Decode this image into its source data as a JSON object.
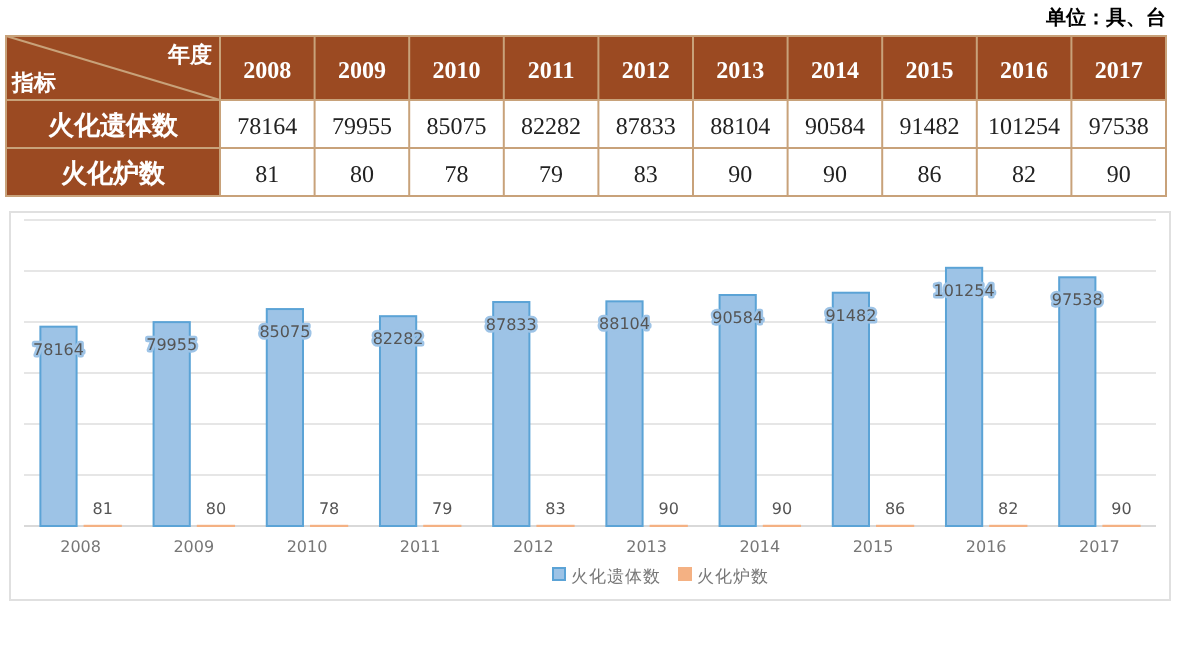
{
  "chart_data": [
    {
      "type": "heatmap",
      "categories": [
        "2008",
        "2009",
        "2010",
        "2011",
        "2012",
        "2013",
        "2014",
        "2015",
        "2016",
        "2017"
      ],
      "y_categories": [
        "火化遗体数",
        "火化炉数"
      ],
      "cells": [
        [
          78164,
          79955,
          85075,
          82282,
          87833,
          88104,
          90584,
          91482,
          101254,
          97538
        ],
        [
          81,
          80,
          78,
          79,
          83,
          90,
          90,
          86,
          82,
          90
        ]
      ],
      "data_labels": true,
      "annotations": [
        "单位：具、台",
        "年度",
        "指标"
      ]
    },
    {
      "type": "bar",
      "categories": [
        "2008",
        "2009",
        "2010",
        "2011",
        "2012",
        "2013",
        "2014",
        "2015",
        "2016",
        "2017"
      ],
      "series": [
        {
          "name": "火化遗体数",
          "color": "#9dc3e6",
          "values": [
            78164,
            79955,
            85075,
            82282,
            87833,
            88104,
            90584,
            91482,
            101254,
            97538
          ]
        },
        {
          "name": "火化炉数",
          "color": "#f4b183",
          "values": [
            81,
            80,
            78,
            79,
            83,
            90,
            90,
            86,
            82,
            90
          ]
        }
      ],
      "ylim": [
        0,
        120000
      ],
      "yticks": [
        {
          "value": 0,
          "label": null
        },
        {
          "value": 20000,
          "label": null
        },
        {
          "value": 40000,
          "label": null
        },
        {
          "value": 60000,
          "label": null
        },
        {
          "value": 80000,
          "label": null
        },
        {
          "value": 100000,
          "label": null
        },
        {
          "value": 120000,
          "label": null
        }
      ],
      "tick_labels": "x",
      "grid": "y",
      "legend": "bottom",
      "data_labels": true
    }
  ]
}
